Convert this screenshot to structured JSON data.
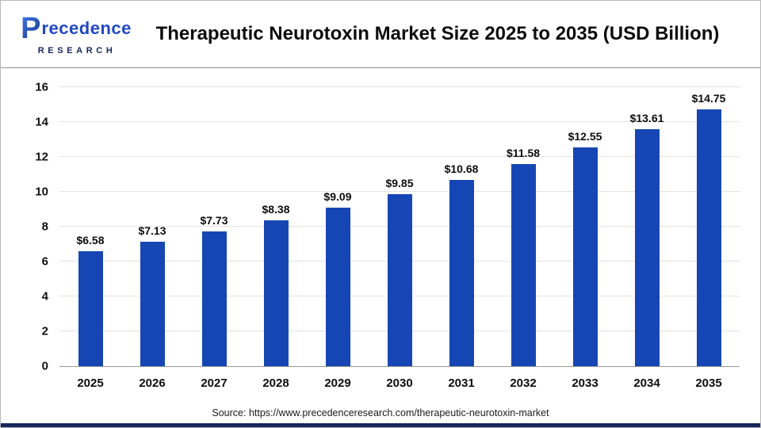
{
  "header": {
    "logo": {
      "mark": "P",
      "name_rest": "recedence",
      "subtitle": "RESEARCH"
    },
    "title": "Therapeutic Neurotoxin Market Size 2025 to 2035 (USD Billion)"
  },
  "chart_data": {
    "type": "bar",
    "title": "Therapeutic Neurotoxin Market Size 2025 to 2035 (USD Billion)",
    "categories": [
      "2025",
      "2026",
      "2027",
      "2028",
      "2029",
      "2030",
      "2031",
      "2032",
      "2033",
      "2034",
      "2035"
    ],
    "values": [
      6.58,
      7.13,
      7.73,
      8.38,
      9.09,
      9.85,
      10.68,
      11.58,
      12.55,
      13.61,
      14.75
    ],
    "value_prefix": "$",
    "xlabel": "",
    "ylabel": "",
    "ylim": [
      0,
      16
    ],
    "yticks": [
      0,
      2,
      4,
      6,
      8,
      10,
      12,
      14,
      16
    ],
    "bar_color": "#1546b4",
    "grid": true,
    "legend_position": "none"
  },
  "footer": {
    "source": "Source: https://www.precedenceresearch.com/therapeutic-neurotoxin-market"
  }
}
